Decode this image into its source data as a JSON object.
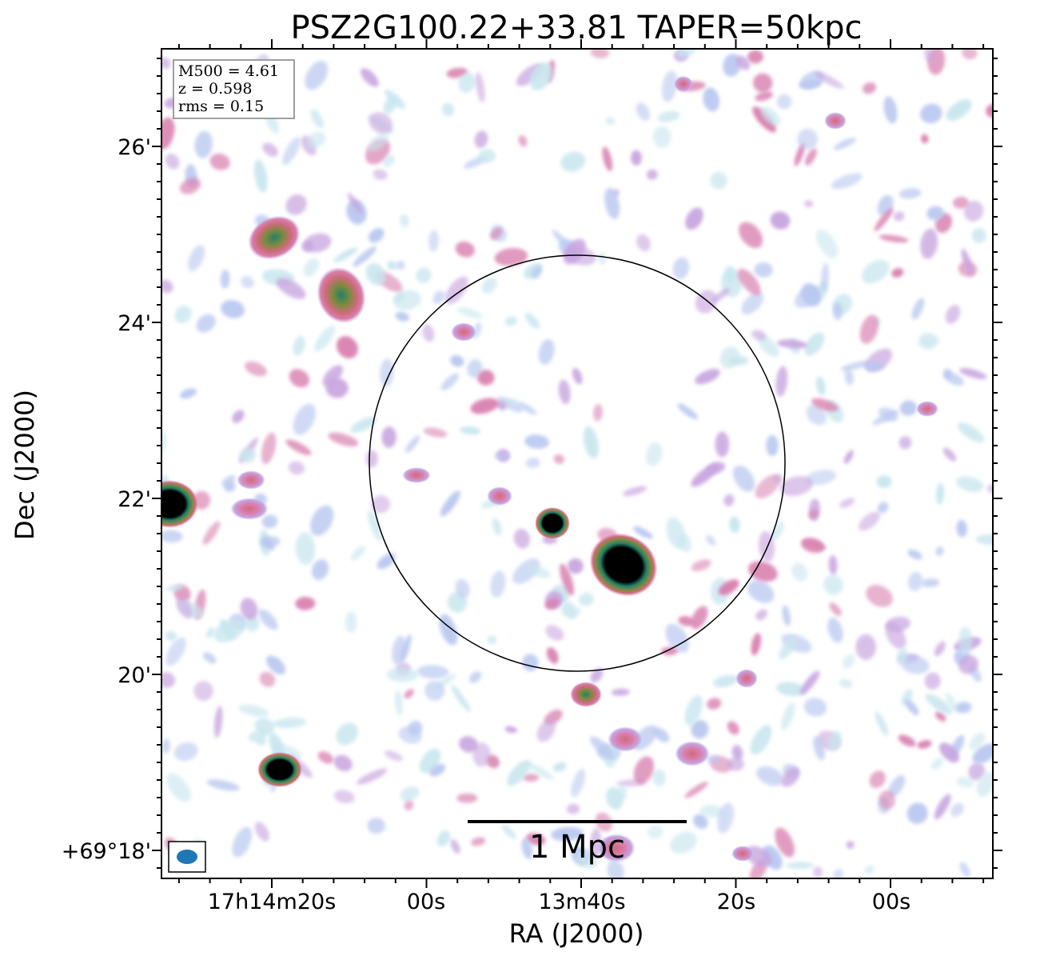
{
  "chart_data": {
    "type": "heatmap",
    "title": "PSZ2G100.22+33.81 TAPER=50kpc",
    "xlabel": "RA (J2000)",
    "ylabel": "Dec (J2000)",
    "x_tick_labels": [
      "17h14m20s",
      "00s",
      "13m40s",
      "20s",
      "00s"
    ],
    "y_tick_labels": [
      "26'",
      "24'",
      "22'",
      "20'",
      "+69°18'"
    ],
    "info_box": {
      "mass": "M500 = 4.61",
      "redshift": "z = 0.598",
      "rms": "rms = 0.15"
    },
    "scale_bar_label": "1 Mpc",
    "colormap": [
      "#ffffff",
      "#c8e6ee",
      "#b9c8f0",
      "#c7a4df",
      "#d87fae",
      "#cf6b7c",
      "#7c8a3e",
      "#24806a",
      "#000000"
    ],
    "beam_color": "#1f77b4"
  }
}
